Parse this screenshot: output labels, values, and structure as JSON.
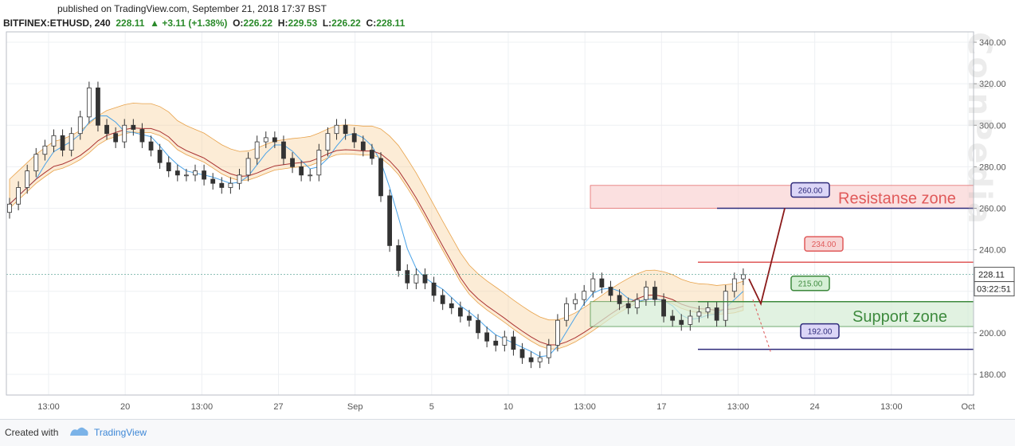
{
  "header": {
    "published": "published on TradingView.com, September 21, 2018 17:37 BST",
    "symbol": "BITFINEX:ETHUSD, 240",
    "last": "228.11",
    "change": "+3.11 (+1.38%)",
    "o_label": "O:",
    "o": "226.22",
    "h_label": "H:",
    "h": "229.53",
    "l_label": "L:",
    "l": "226.22",
    "c_label": "C:",
    "c": "228.11"
  },
  "footer": {
    "created": "Created with",
    "brand": "TradingView"
  },
  "watermark": "CoinPedia",
  "colors": {
    "up": "#53b987",
    "down": "#eb4d5c",
    "grid": "#eef0f3",
    "resistance": "#e05a5a",
    "support": "#3d8a3d",
    "navy": "#2e2a7a",
    "cloud_orange": "#f7c98a",
    "cloud_green": "#8fcf8f"
  },
  "chart_data": {
    "type": "candlestick",
    "y_ticks": [
      "340.00",
      "320.00",
      "300.00",
      "280.00",
      "260.00",
      "240.00",
      "220.00",
      "200.00",
      "180.00"
    ],
    "y_range": [
      170,
      345
    ],
    "x_ticks": [
      "13:00",
      "20",
      "13:00",
      "27",
      "Sep",
      "5",
      "10",
      "13:00",
      "17",
      "13:00",
      "24",
      "13:00",
      "Oct"
    ],
    "price_label": "228.11",
    "countdown_label": "03:22:51",
    "closes": [
      262,
      270,
      278,
      286,
      290,
      295,
      288,
      296,
      304,
      318,
      300,
      296,
      292,
      300,
      298,
      292,
      288,
      282,
      278,
      276,
      276,
      278,
      274,
      272,
      270,
      272,
      276,
      284,
      292,
      294,
      292,
      284,
      280,
      276,
      276,
      288,
      296,
      300,
      296,
      292,
      288,
      284,
      266,
      242,
      230,
      224,
      228,
      224,
      218,
      214,
      212,
      208,
      206,
      200,
      196,
      194,
      198,
      192,
      188,
      186,
      188,
      194,
      206,
      214,
      216,
      220,
      226,
      222,
      218,
      214,
      212,
      216,
      222,
      216,
      208,
      206,
      204,
      208,
      210,
      212,
      206,
      220,
      226,
      228
    ],
    "resistance_zone": {
      "label": "Resistanse zone",
      "low": 260,
      "high": 271
    },
    "support_zone": {
      "label": "Support zone",
      "low": 203,
      "high": 215
    },
    "levels": [
      {
        "label": "260.00",
        "value": 260,
        "color": "navy"
      },
      {
        "label": "234.00",
        "value": 234,
        "color": "resistance"
      },
      {
        "label": "215.00",
        "value": 215,
        "color": "support"
      },
      {
        "label": "192.00",
        "value": 192,
        "color": "navy"
      }
    ]
  }
}
